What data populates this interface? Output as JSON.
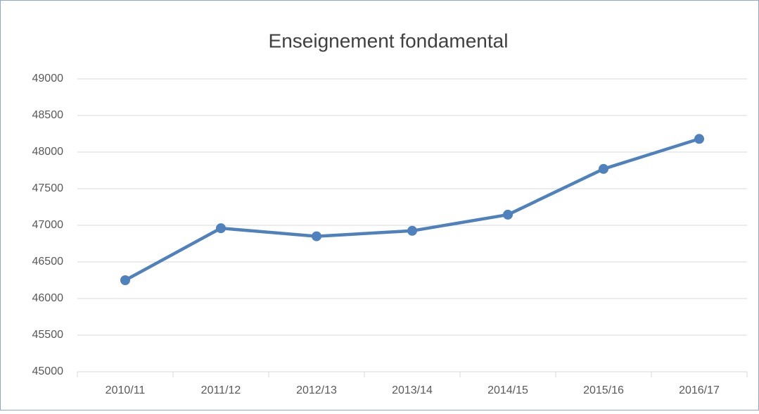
{
  "chart_data": {
    "type": "line",
    "title": "Enseignement fondamental",
    "categories": [
      "2010/11",
      "2011/12",
      "2012/13",
      "2013/14",
      "2014/15",
      "2015/16",
      "2016/17"
    ],
    "series": [
      {
        "name": "Enseignement fondamental",
        "color": "#4f81bd",
        "values": [
          46250,
          46960,
          46850,
          46925,
          47145,
          47770,
          48180
        ]
      }
    ],
    "ylim": [
      45000,
      49000
    ],
    "yticks": [
      45000,
      45500,
      46000,
      46500,
      47000,
      47500,
      48000,
      48500,
      49000
    ],
    "grid": true
  }
}
